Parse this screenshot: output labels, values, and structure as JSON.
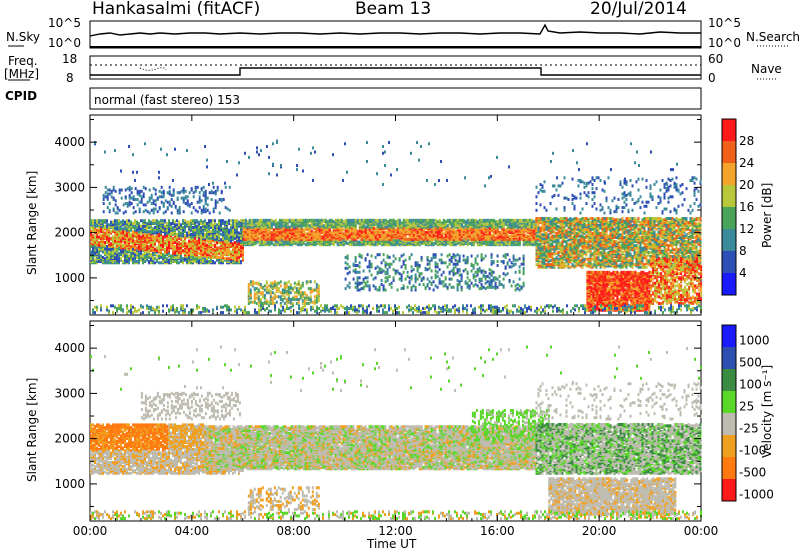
{
  "header": {
    "title": "Hankasalmi (fitACF)",
    "beam": "Beam 13",
    "date": "20/Jul/2014"
  },
  "left_labels": {
    "nsky": "N.Sky",
    "freq": "Freq.",
    "mhz": "[MHz]",
    "cpid": "CPID"
  },
  "right_labels": {
    "nsearch": "N.Search",
    "nave": "Nave"
  },
  "mini_ticks": {
    "noise_top_left": "10^5",
    "noise_bottom_left": "10^0",
    "noise_top_right": "10^5",
    "noise_bottom_right": "10^0",
    "freq_top": "18",
    "freq_bottom": "8",
    "nave_top": "60",
    "nave_bottom": "0"
  },
  "cpid_text": "normal (fast stereo) 153",
  "colors": {
    "power_scale": [
      "#1a1aff",
      "#2e4fb5",
      "#3a8a9a",
      "#4aa35a",
      "#b8c83a",
      "#f3a42a",
      "#f06018",
      "#ff1a1a"
    ],
    "velocity_scale": [
      "#1a1aff",
      "#2c4fb0",
      "#3a8c42",
      "#5ad82a",
      "#bebcb0",
      "#f0a020",
      "#ff7a10",
      "#ff1a1a"
    ]
  },
  "chart_data": [
    {
      "type": "heatmap",
      "title": "",
      "ylabel": "Slant Range [km]",
      "xlabel": "",
      "x_ticks": [
        "00:00",
        "04:00",
        "08:00",
        "12:00",
        "16:00",
        "20:00",
        "00:00"
      ],
      "y_ticks": [
        "1000",
        "2000",
        "3000",
        "4000"
      ],
      "ylim": [
        180,
        4600
      ],
      "xlim_hours": [
        0,
        24
      ],
      "colorbar": {
        "label": "Power [dB]",
        "ticks": [
          "4",
          "8",
          "12",
          "16",
          "20",
          "24",
          "28"
        ]
      }
    },
    {
      "type": "heatmap",
      "title": "",
      "ylabel": "Slant Range [km]",
      "xlabel": "Time UT",
      "x_ticks": [
        "00:00",
        "04:00",
        "08:00",
        "12:00",
        "16:00",
        "20:00",
        "00:00"
      ],
      "y_ticks": [
        "1000",
        "2000",
        "3000",
        "4000"
      ],
      "ylim": [
        180,
        4600
      ],
      "xlim_hours": [
        0,
        24
      ],
      "colorbar": {
        "label": "Velocity [m s⁻¹]",
        "ticks": [
          "1000",
          "500",
          "100",
          "25",
          "-25",
          "-100",
          "-500",
          "-1000"
        ]
      }
    }
  ]
}
